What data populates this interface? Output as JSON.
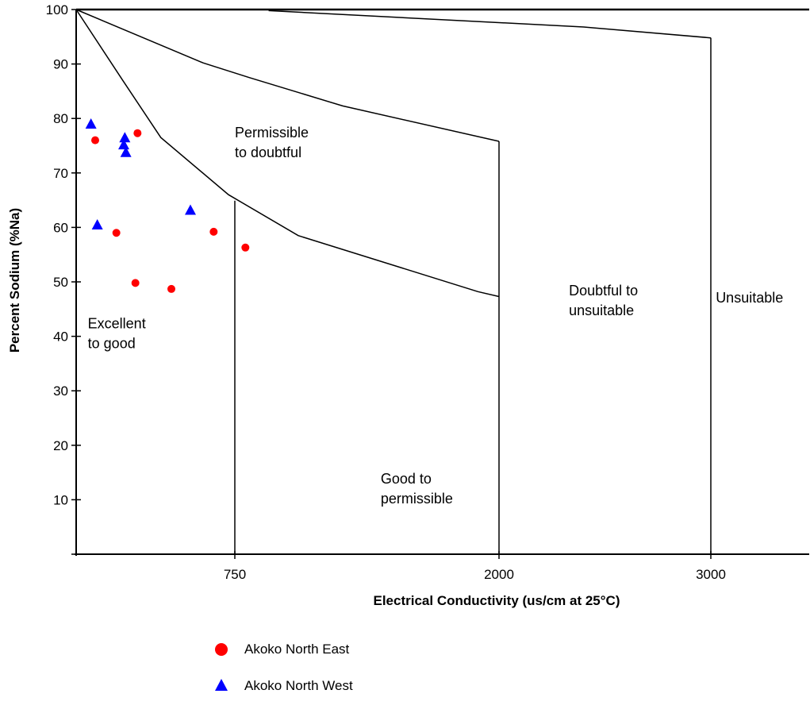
{
  "chart_data": {
    "type": "scatter",
    "title": "",
    "xlabel": "Electrical Conductivity (us/cm at 25°C)",
    "ylabel": "Percent Sodium (%Na)",
    "xlim": [
      0,
      3500
    ],
    "ylim": [
      0,
      100
    ],
    "x_ticks": [
      "750",
      "2000",
      "3000"
    ],
    "y_ticks": [
      "10",
      "20",
      "30",
      "40",
      "50",
      "60",
      "70",
      "80",
      "90",
      "100"
    ],
    "region_labels": [
      {
        "line1": "Excellent",
        "line2": "to good"
      },
      {
        "line1": "Permissible",
        "line2": "to doubtful"
      },
      {
        "line1": "Good to",
        "line2": "permissible"
      },
      {
        "line1": "Doubtful to",
        "line2": "unsuitable"
      },
      {
        "line1": "Unsuitable",
        "line2": ""
      }
    ],
    "series": [
      {
        "name": "Akoko North East",
        "marker": "circle",
        "color": "#ff0000",
        "points": [
          {
            "x": 90,
            "y": 76
          },
          {
            "x": 190,
            "y": 59
          },
          {
            "x": 290,
            "y": 77.3
          },
          {
            "x": 280,
            "y": 49.8
          },
          {
            "x": 450,
            "y": 48.7
          },
          {
            "x": 650,
            "y": 59.2
          },
          {
            "x": 800,
            "y": 56.3
          }
        ]
      },
      {
        "name": "Akoko North West",
        "marker": "triangle",
        "color": "#0000ff",
        "points": [
          {
            "x": 70,
            "y": 79
          },
          {
            "x": 100,
            "y": 60.5
          },
          {
            "x": 230,
            "y": 76.5
          },
          {
            "x": 225,
            "y": 75.2
          },
          {
            "x": 235,
            "y": 73.8
          },
          {
            "x": 540,
            "y": 63.2
          }
        ]
      }
    ],
    "boundary_curves": [
      [
        [
          0,
          100
        ],
        [
          220,
          87
        ],
        [
          400,
          76.5
        ],
        [
          720,
          66
        ],
        [
          1050,
          58.5
        ],
        [
          1900,
          48.2
        ],
        [
          2000,
          47.3
        ]
      ],
      [
        [
          0,
          100
        ],
        [
          600,
          90.2
        ],
        [
          820,
          87.5
        ],
        [
          1260,
          82.3
        ],
        [
          2000,
          75.8
        ]
      ],
      [
        [
          910,
          99.8
        ],
        [
          2000,
          97.6
        ],
        [
          2400,
          96.8
        ],
        [
          3000,
          94.8
        ]
      ]
    ],
    "vertical_boundaries": [
      {
        "x": 750,
        "y_top": 64.9
      },
      {
        "x": 2000,
        "y_top": 75.8
      },
      {
        "x": 3000,
        "y_top": 94.8
      }
    ],
    "grid": false,
    "legend_position": "bottom"
  }
}
